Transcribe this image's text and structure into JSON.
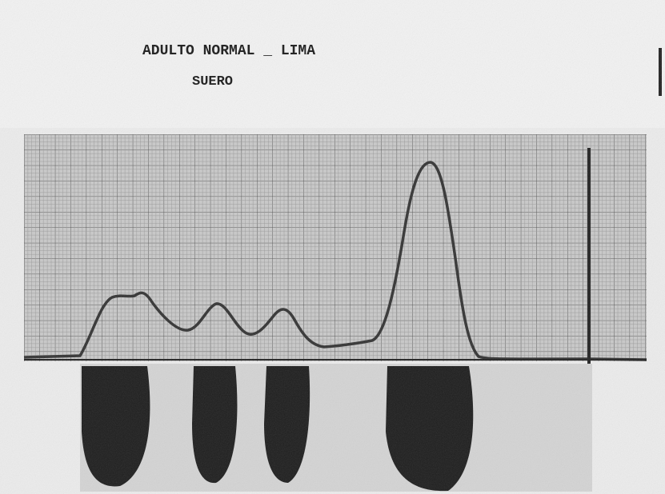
{
  "header": {
    "title": "ADULTO NORMAL _ LIMA",
    "subtitle": "SUERO"
  }
}
